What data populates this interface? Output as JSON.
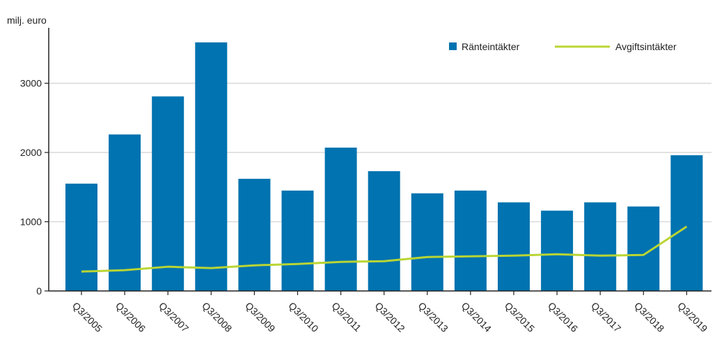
{
  "chart_data": {
    "type": "bar",
    "unit_label": "milj. euro",
    "categories": [
      "Q3/2005",
      "Q3/2006",
      "Q3/2007",
      "Q3/2008",
      "Q3/2009",
      "Q3/2010",
      "Q3/2011",
      "Q3/2012",
      "Q3/2013",
      "Q3/2014",
      "Q3/2015",
      "Q3/2016",
      "Q3/2017",
      "Q3/2018",
      "Q3/2019"
    ],
    "series": [
      {
        "name": "Ränteintäkter",
        "type": "bar",
        "color": "#0073b0",
        "values": [
          1550,
          2260,
          2810,
          3590,
          1620,
          1450,
          2070,
          1730,
          1410,
          1450,
          1280,
          1160,
          1280,
          1220,
          1960
        ]
      },
      {
        "name": "Avgiftsintäkter",
        "type": "line",
        "color": "#b9d533",
        "values": [
          280,
          300,
          350,
          330,
          370,
          390,
          420,
          430,
          490,
          500,
          510,
          530,
          510,
          520,
          930
        ]
      }
    ],
    "ylim": [
      0,
      3800
    ],
    "yticks": [
      0,
      1000,
      2000,
      3000
    ],
    "grid": true,
    "legend_position": "top-right",
    "axis_color": "#222222",
    "grid_color": "#d9d9d9"
  }
}
